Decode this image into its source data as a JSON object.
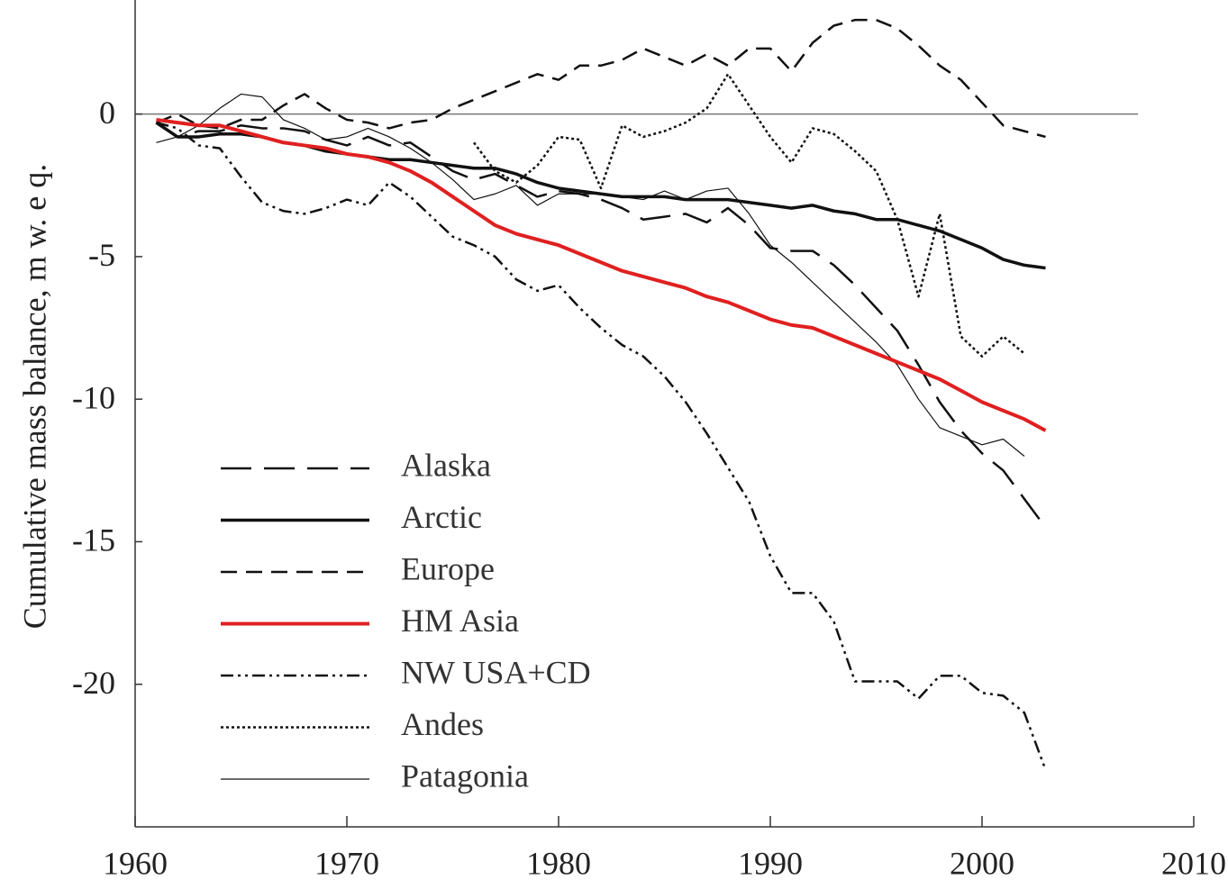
{
  "chart_data": {
    "type": "line",
    "y_label": "Cumulative mass balance, m w. e q.",
    "x": [
      1961,
      1962,
      1963,
      1964,
      1965,
      1966,
      1967,
      1968,
      1969,
      1970,
      1971,
      1972,
      1973,
      1974,
      1975,
      1976,
      1977,
      1978,
      1979,
      1980,
      1981,
      1982,
      1983,
      1984,
      1985,
      1986,
      1987,
      1988,
      1989,
      1990,
      1991,
      1992,
      1993,
      1994,
      1995,
      1996,
      1997,
      1998,
      1999,
      2000,
      2001,
      2002,
      2003
    ],
    "xlim": [
      1960,
      2010
    ],
    "xticks": [
      1960,
      1970,
      1980,
      1990,
      2000,
      2010
    ],
    "ylim": [
      -25,
      4
    ],
    "yticks": [
      0,
      -5,
      -10,
      -15,
      -20
    ],
    "zero_line": true,
    "legend": "lower left",
    "series": [
      {
        "name": "Alaska",
        "color": "#111111",
        "style": "long-dash",
        "linewidth": 2.5,
        "values": [
          -0.3,
          -0.8,
          -0.6,
          -0.6,
          -0.4,
          -0.5,
          -0.5,
          -0.6,
          -0.9,
          -1.1,
          -0.8,
          -1.1,
          -1.0,
          -1.5,
          -2.0,
          -2.3,
          -2.1,
          -2.5,
          -2.9,
          -2.7,
          -2.8,
          -3.0,
          -3.3,
          -3.7,
          -3.6,
          -3.5,
          -3.8,
          -3.3,
          -3.9,
          -4.7,
          -4.8,
          -4.8,
          -5.3,
          -6.0,
          -6.8,
          -7.6,
          -8.8,
          -10.1,
          -11.1,
          -11.9,
          -12.5,
          -13.5,
          -14.5
        ]
      },
      {
        "name": "Arctic",
        "color": "#111111",
        "style": "solid",
        "linewidth": 3.5,
        "values": [
          -0.3,
          -0.8,
          -0.8,
          -0.7,
          -0.7,
          -0.8,
          -1.0,
          -1.1,
          -1.3,
          -1.4,
          -1.5,
          -1.6,
          -1.6,
          -1.7,
          -1.8,
          -1.9,
          -1.9,
          -2.1,
          -2.4,
          -2.6,
          -2.7,
          -2.8,
          -2.9,
          -2.9,
          -2.9,
          -3.0,
          -3.0,
          -3.0,
          -3.1,
          -3.2,
          -3.3,
          -3.2,
          -3.4,
          -3.5,
          -3.7,
          -3.7,
          -3.9,
          -4.1,
          -4.4,
          -4.7,
          -5.1,
          -5.3,
          -5.4
        ]
      },
      {
        "name": "Europe",
        "color": "#111111",
        "style": "dash",
        "linewidth": 2.5,
        "values": [
          -0.3,
          0,
          -0.4,
          -0.5,
          -0.2,
          -0.2,
          0.3,
          0.7,
          0.2,
          -0.2,
          -0.3,
          -0.5,
          -0.3,
          -0.2,
          0.2,
          0.5,
          0.8,
          1.1,
          1.4,
          1.2,
          1.7,
          1.7,
          1.9,
          2.3,
          2.0,
          1.7,
          2.1,
          1.7,
          2.3,
          2.3,
          1.5,
          2.5,
          3.1,
          3.3,
          3.3,
          3.0,
          2.4,
          1.7,
          1.2,
          0.4,
          -0.4,
          -0.6,
          -0.8
        ]
      },
      {
        "name": "NW USA+CD",
        "color": "#111111",
        "style": "dash-dot-dot",
        "linewidth": 2.5,
        "values": [
          -0.3,
          -0.5,
          -1.1,
          -1.2,
          -2.2,
          -3.1,
          -3.4,
          -3.5,
          -3.3,
          -3.0,
          -3.2,
          -2.4,
          -2.9,
          -3.6,
          -4.3,
          -4.6,
          -5.0,
          -5.8,
          -6.2,
          -6.0,
          -6.8,
          -7.5,
          -8.1,
          -8.5,
          -9.2,
          -10.1,
          -11.2,
          -12.4,
          -13.6,
          -15.5,
          -16.8,
          -16.8,
          -17.8,
          -19.9,
          -19.9,
          -19.9,
          -20.5,
          -19.7,
          -19.7,
          -20.3,
          -20.4,
          -21.0,
          -23.0
        ]
      },
      {
        "name": "Andes",
        "color": "#111111",
        "style": "dot",
        "linewidth": 2.5,
        "values": [
          null,
          null,
          null,
          null,
          null,
          null,
          null,
          null,
          null,
          null,
          null,
          null,
          null,
          null,
          null,
          -1.0,
          -2.0,
          -2.4,
          -1.8,
          -0.8,
          -0.9,
          -2.6,
          -0.4,
          -0.8,
          -0.6,
          -0.3,
          0.2,
          1.4,
          0.3,
          -0.8,
          -1.7,
          -0.5,
          -0.7,
          -1.3,
          -2.0,
          -3.7,
          -6.4,
          -3.5,
          -7.8,
          -8.5,
          -7.8,
          -8.4,
          null
        ]
      },
      {
        "name": "Patagonia",
        "color": "#111111",
        "style": "solid",
        "linewidth": 1.2,
        "values": [
          -1.0,
          -0.8,
          -0.4,
          0.2,
          0.7,
          0.6,
          -0.2,
          -0.5,
          -0.9,
          -0.8,
          -0.5,
          -0.8,
          -1.2,
          -1.7,
          -2.3,
          -3.0,
          -2.8,
          -2.5,
          -3.2,
          -2.8,
          -2.8,
          -2.8,
          -2.9,
          -3.0,
          -2.7,
          -3.0,
          -2.7,
          -2.6,
          -3.5,
          -4.6,
          -5.2,
          -5.9,
          -6.6,
          -7.3,
          -8.0,
          -8.8,
          -10.0,
          -11.0,
          -11.3,
          -11.6,
          -11.4,
          -12.0,
          null
        ]
      },
      {
        "name": "HM Asia",
        "color": "#e02020",
        "style": "solid",
        "linewidth": 4,
        "values": [
          -0.2,
          -0.3,
          -0.4,
          -0.4,
          -0.6,
          -0.8,
          -1.0,
          -1.1,
          -1.2,
          -1.4,
          -1.5,
          -1.7,
          -2.0,
          -2.4,
          -2.9,
          -3.4,
          -3.9,
          -4.2,
          -4.4,
          -4.6,
          -4.9,
          -5.2,
          -5.5,
          -5.7,
          -5.9,
          -6.1,
          -6.4,
          -6.6,
          -6.9,
          -7.2,
          -7.4,
          -7.5,
          -7.8,
          -8.1,
          -8.4,
          -8.7,
          -9.0,
          -9.3,
          -9.7,
          -10.1,
          -10.4,
          -10.7,
          -11.1
        ]
      }
    ],
    "legend_order": [
      "Alaska",
      "Arctic",
      "Europe",
      "HM Asia",
      "NW USA+CD",
      "Andes",
      "Patagonia"
    ]
  }
}
